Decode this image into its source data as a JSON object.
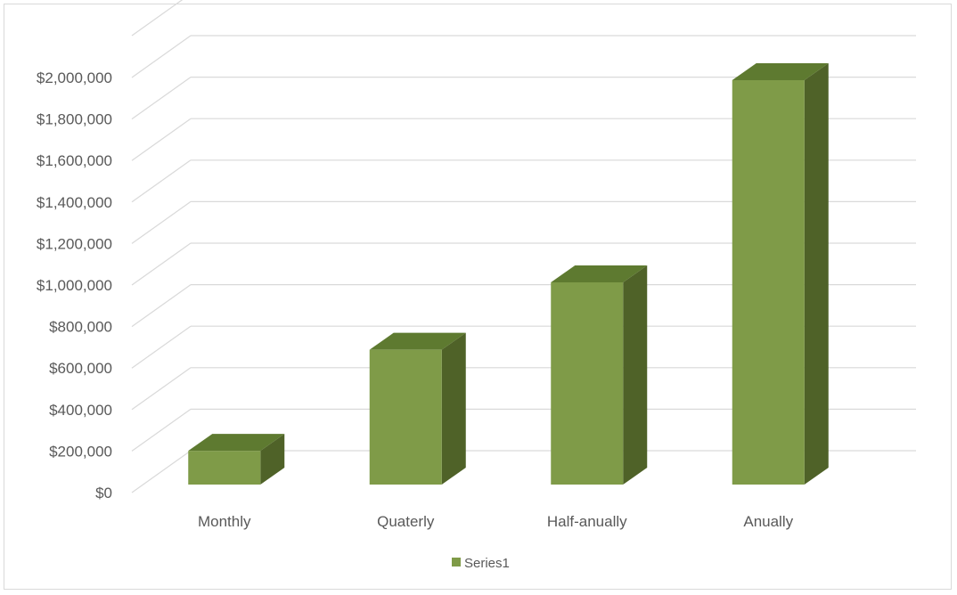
{
  "chart_data": {
    "type": "bar",
    "style": "3d-column",
    "categories": [
      "Monthly",
      "Quaterly",
      "Half-anually",
      "Anually"
    ],
    "series": [
      {
        "name": "Series1",
        "values": [
          160000,
          640000,
          960000,
          1920000
        ],
        "color": "#7f9b48",
        "side_color": "#4f6228",
        "top_color": "#5e7a30"
      }
    ],
    "ylim": [
      0,
      2000000
    ],
    "yticks": [
      0,
      200000,
      400000,
      600000,
      800000,
      1000000,
      1200000,
      1400000,
      1600000,
      1800000,
      2000000
    ],
    "ytick_labels": [
      "$0",
      "$200,000",
      "$400,000",
      "$600,000",
      "$800,000",
      "$1,000,000",
      "$1,200,000",
      "$1,400,000",
      "$1,600,000",
      "$1,800,000",
      "$2,000,000"
    ],
    "grid": true,
    "legend_position": "bottom",
    "title": "",
    "xlabel": "",
    "ylabel": ""
  }
}
